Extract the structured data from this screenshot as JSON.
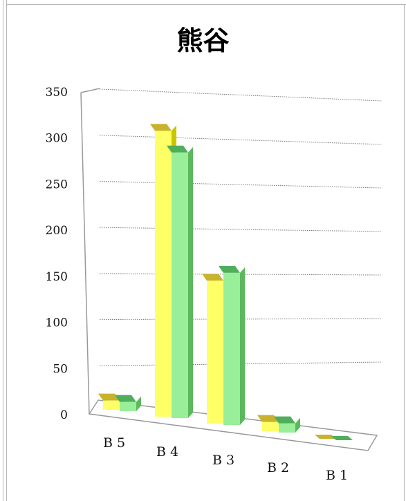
{
  "chart_data": {
    "type": "bar",
    "title": "熊谷",
    "categories": [
      "B 5",
      "B 4",
      "B 3",
      "B 2",
      "B 1"
    ],
    "series": [
      {
        "values": [
          10,
          310,
          155,
          10,
          0
        ]
      },
      {
        "values": [
          10,
          288,
          165,
          10,
          0
        ]
      }
    ],
    "ylim": [
      0,
      350
    ],
    "yticks": [
      0,
      50,
      100,
      150,
      200,
      250,
      300,
      350
    ],
    "grid": true,
    "legend": "none",
    "colors": {
      "series1_front": "#ffff66",
      "series1_side": "#c9c400",
      "series1_top": "#c8b22e",
      "series2_front": "#99ee99",
      "series2_side": "#5cb85c",
      "series2_top": "#4fae5a",
      "floor": "#ffffff",
      "axis": "#999999",
      "grid": "#777777"
    }
  }
}
